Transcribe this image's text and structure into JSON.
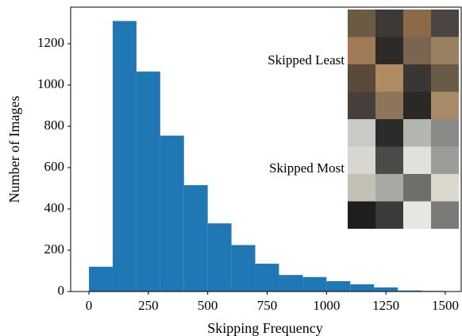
{
  "chart_data": {
    "type": "histogram",
    "xlabel": "Skipping Frequency",
    "ylabel": "Number of Images",
    "bins": [
      0,
      100,
      200,
      300,
      400,
      500,
      600,
      700,
      800,
      900,
      1000,
      1100,
      1200,
      1300,
      1400,
      1500
    ],
    "values": [
      120,
      1310,
      1065,
      755,
      515,
      330,
      225,
      135,
      80,
      70,
      50,
      35,
      20,
      5,
      3
    ],
    "color": "#1f77b4",
    "xlim": [
      -77,
      1567
    ],
    "ylim": [
      0,
      1377
    ],
    "xticks": [
      0,
      250,
      500,
      750,
      1000,
      1250,
      1500
    ],
    "yticks": [
      0,
      200,
      400,
      600,
      800,
      1000,
      1200
    ],
    "annotations": [
      "Skipped Least",
      "Skipped Most"
    ]
  }
}
